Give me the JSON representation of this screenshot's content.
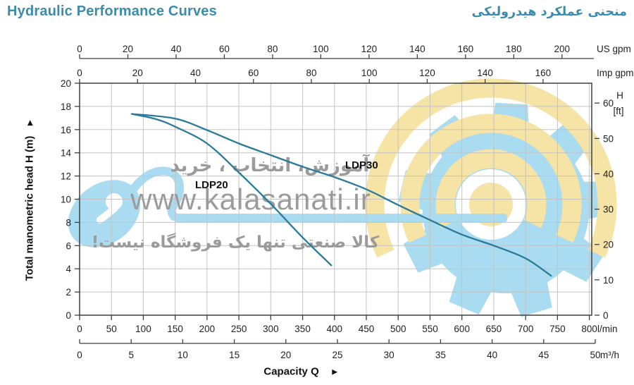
{
  "header": {
    "title_en": "Hydraulic Performance Curves",
    "title_fa": "منحنی عملکرد هیدرولیکی"
  },
  "watermark": {
    "tagline_top": "آموزش، انتخاب ، خرید",
    "website": "www.kalasanati.ir",
    "tagline_bottom": "کالا صنعتی تنها یک فروشگاه نیست!",
    "colors": {
      "blue": "#a9dbf1",
      "yellow": "#f6e3a6",
      "text_gray": "#9b9b9b"
    }
  },
  "chart_data": {
    "type": "line",
    "title": "Hydraulic Performance Curves",
    "xlabel": "Capacity Q",
    "xlabel_arrow": "►",
    "ylabel": "Total manometric head H (m)",
    "ylabel_arrow": "►",
    "grid": true,
    "colors": {
      "curve": "#2a7b99",
      "grid": "#c3c3c3",
      "axis": "#3f3f3f",
      "tick_text": "#1f1f1f"
    },
    "axes": {
      "top_us": {
        "label": "US gpm",
        "ticks": [
          0,
          20,
          40,
          60,
          80,
          100,
          120,
          140,
          160,
          180,
          200
        ]
      },
      "top_imp": {
        "label": "Imp gpm",
        "ticks": [
          0,
          20,
          40,
          60,
          80,
          100,
          120,
          140,
          160
        ]
      },
      "bottom_lmin": {
        "label": "l/min",
        "ticks": [
          0,
          50,
          100,
          150,
          200,
          250,
          300,
          350,
          400,
          450,
          500,
          550,
          600,
          650,
          700,
          750,
          800
        ]
      },
      "bottom_m3h": {
        "label": "m³/h",
        "ticks": [
          0,
          5,
          10,
          15,
          20,
          25,
          30,
          35,
          40,
          45,
          50
        ]
      },
      "left_m": {
        "label": "H (m)",
        "ticks": [
          0,
          2,
          4,
          6,
          8,
          10,
          12,
          14,
          16,
          18,
          20
        ],
        "range": [
          0,
          20
        ]
      },
      "right_ft": {
        "label_line1": "H",
        "label_line2": "[ft]",
        "ticks": [
          0,
          10,
          20,
          30,
          40,
          50,
          60
        ]
      }
    },
    "series": [
      {
        "name": "LDP20",
        "points_lmin_m": [
          [
            82,
            17.35
          ],
          [
            120,
            16.9
          ],
          [
            150,
            16.25
          ],
          [
            200,
            14.8
          ],
          [
            250,
            12.3
          ],
          [
            300,
            9.6
          ],
          [
            350,
            6.7
          ],
          [
            395,
            4.3
          ]
        ]
      },
      {
        "name": "LDP30",
        "points_lmin_m": [
          [
            82,
            17.35
          ],
          [
            150,
            16.95
          ],
          [
            200,
            15.95
          ],
          [
            250,
            14.8
          ],
          [
            300,
            13.8
          ],
          [
            350,
            12.8
          ],
          [
            400,
            11.9
          ],
          [
            450,
            10.85
          ],
          [
            500,
            9.5
          ],
          [
            550,
            8.2
          ],
          [
            600,
            6.95
          ],
          [
            650,
            6.0
          ],
          [
            700,
            4.9
          ],
          [
            740,
            3.4
          ]
        ]
      }
    ]
  }
}
